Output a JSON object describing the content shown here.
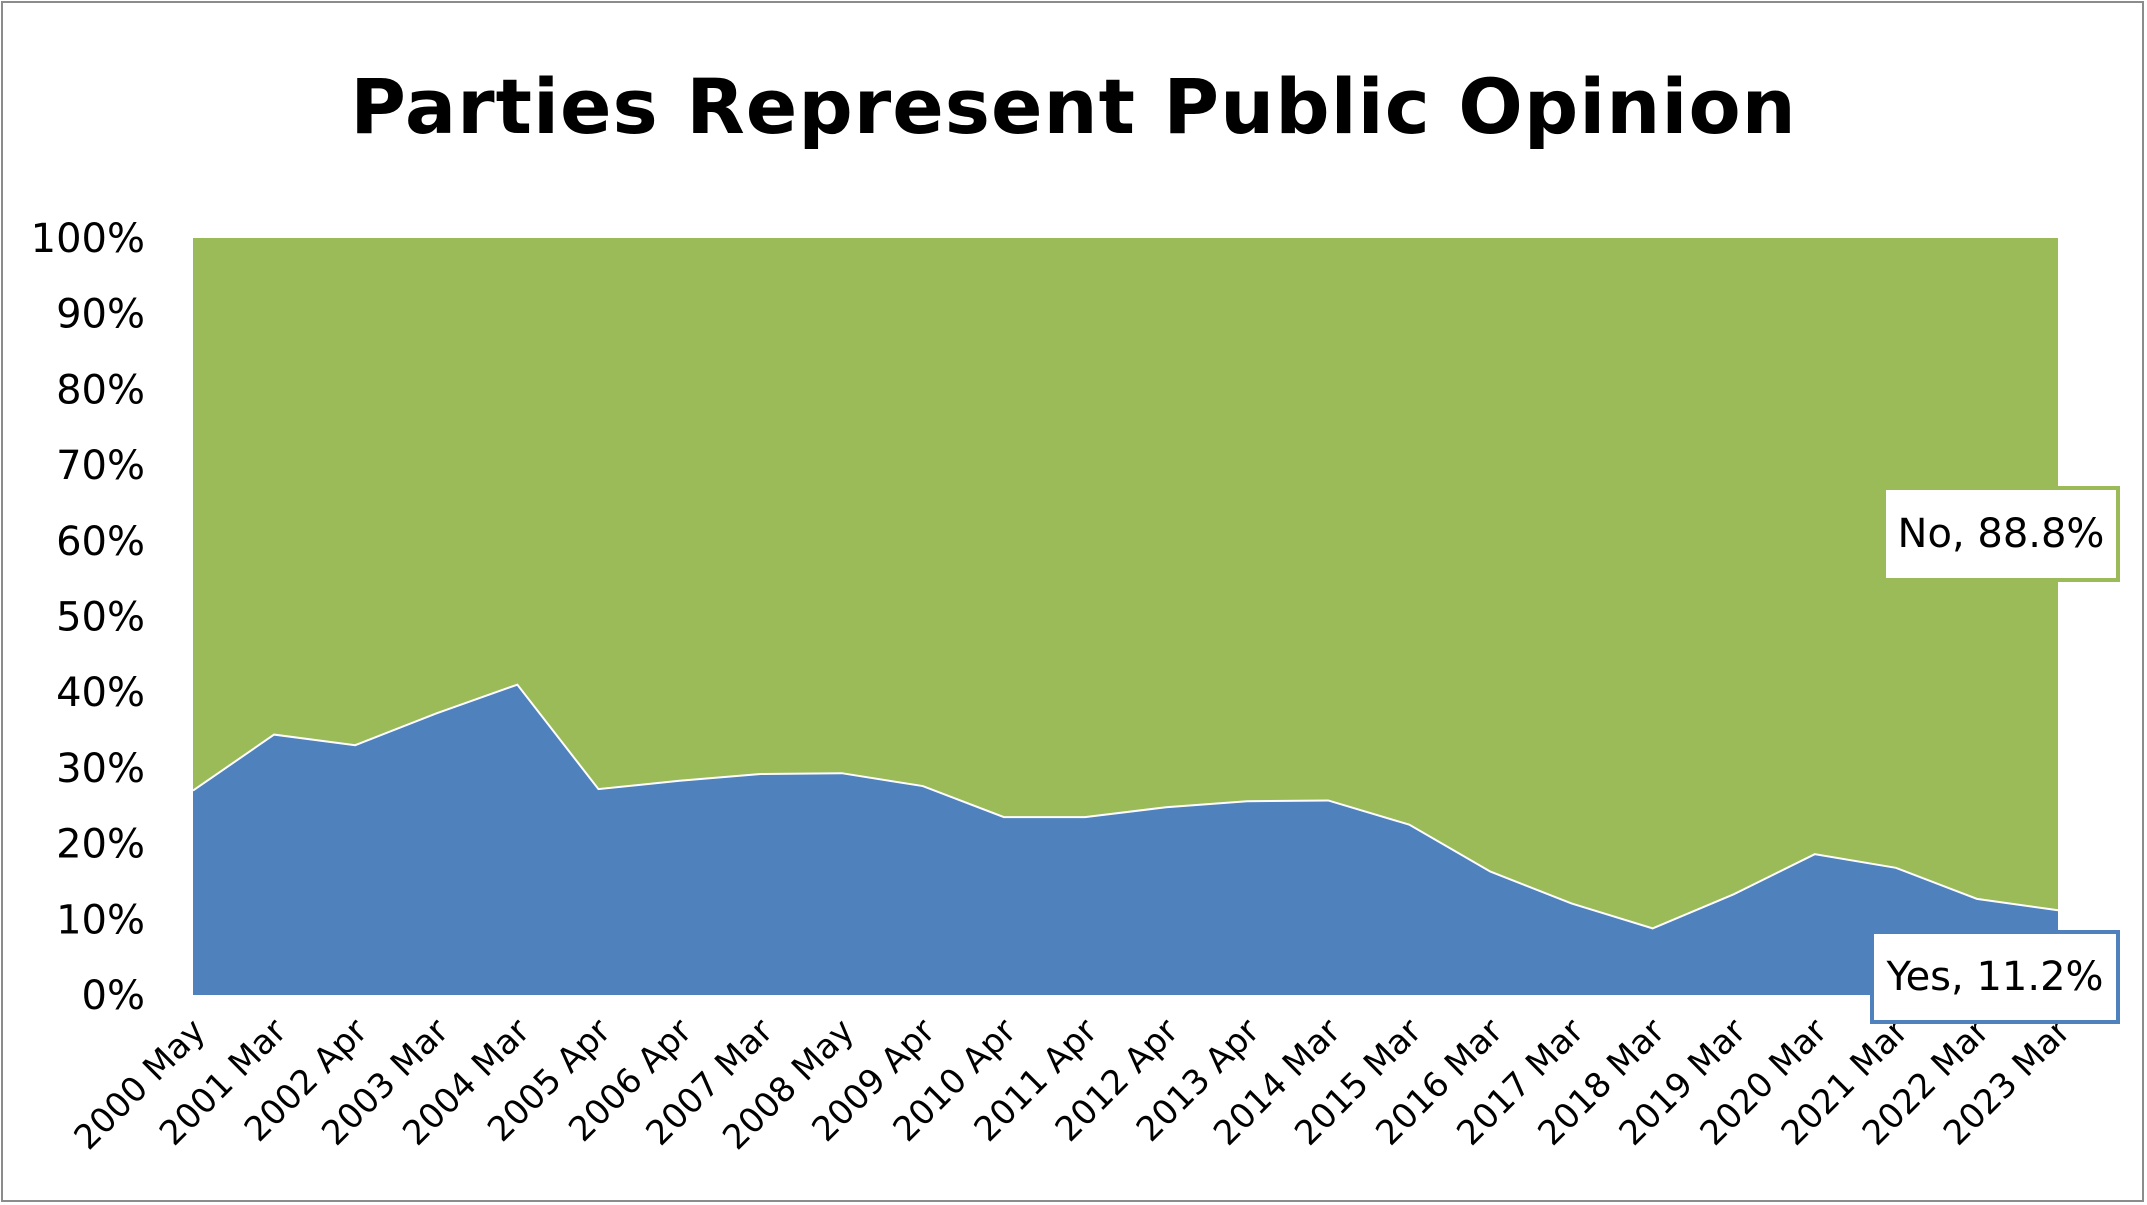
{
  "chart_data": {
    "type": "area",
    "stacked": true,
    "title": "Parties Represent Public Opinion",
    "categories": [
      "2000 May",
      "2001 Mar",
      "2002 Apr",
      "2003 Mar",
      "2004 Mar",
      "2005 Apr",
      "2006 Apr",
      "2007 Mar",
      "2008 May",
      "2009 Apr",
      "2010 Apr",
      "2011 Apr",
      "2012 Apr",
      "2013 Apr",
      "2014 Mar",
      "2015 Mar",
      "2016 Mar",
      "2017 Mar",
      "2018 Mar",
      "2019 Mar",
      "2020 Mar",
      "2021 Mar",
      "2022 Mar",
      "2023 Mar"
    ],
    "series": [
      {
        "name": "Yes",
        "color": "#4f81bd",
        "values": [
          27.0,
          34.4,
          33.0,
          37.2,
          41.0,
          27.2,
          28.3,
          29.2,
          29.3,
          27.6,
          23.5,
          23.5,
          24.8,
          25.6,
          25.7,
          22.5,
          16.3,
          12.1,
          8.8,
          13.3,
          18.6,
          16.8,
          12.7,
          11.2
        ]
      },
      {
        "name": "No",
        "color": "#9bbb59",
        "values": [
          73.0,
          65.6,
          67.0,
          62.8,
          59.0,
          72.8,
          71.7,
          70.8,
          70.7,
          72.4,
          76.5,
          76.5,
          75.2,
          74.4,
          74.3,
          77.5,
          83.7,
          87.9,
          91.2,
          86.7,
          81.4,
          83.2,
          87.3,
          88.8
        ]
      }
    ],
    "yticks": [
      "0%",
      "10%",
      "20%",
      "30%",
      "40%",
      "50%",
      "60%",
      "70%",
      "80%",
      "90%",
      "100%"
    ],
    "ylim": [
      0,
      100
    ],
    "data_labels": {
      "no": "No, 88.8%",
      "yes": "Yes, 11.2%"
    },
    "grid": false,
    "legend": "none"
  }
}
